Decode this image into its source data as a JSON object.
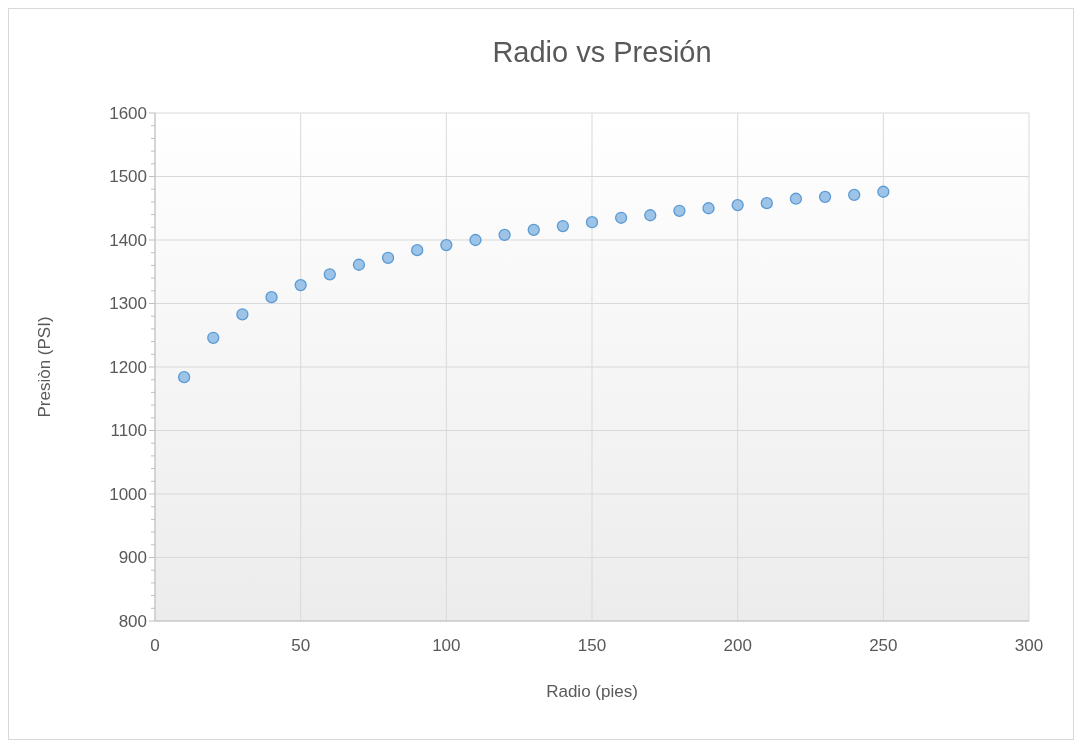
{
  "chart_data": {
    "type": "scatter",
    "title": "Radio vs Presión",
    "xlabel": "Radio (pies)",
    "ylabel": "Presiòn (PSI)",
    "x": [
      10,
      20,
      30,
      40,
      50,
      60,
      70,
      80,
      90,
      100,
      110,
      120,
      130,
      140,
      150,
      160,
      170,
      180,
      190,
      200,
      210,
      220,
      230,
      240,
      250
    ],
    "series": [
      {
        "color": "#9dc3e6",
        "values": [
          1184,
          1246,
          1283,
          1310,
          1329,
          1346,
          1361,
          1372,
          1384,
          1392,
          1400,
          1408,
          1416,
          1422,
          1428,
          1435,
          1439,
          1446,
          1450,
          1455,
          1458,
          1465,
          1468,
          1471,
          1476
        ]
      }
    ],
    "xlim": [
      0,
      300
    ],
    "xticks": [
      0,
      50,
      100,
      150,
      200,
      250,
      300
    ],
    "ylim": [
      800,
      1600
    ],
    "yticks": [
      800,
      {
        "value": 820,
        "label": null
      },
      {
        "value": 840,
        "label": null
      },
      {
        "value": 860,
        "label": null
      },
      {
        "value": 880,
        "label": null
      },
      900,
      {
        "value": 920,
        "label": null
      },
      {
        "value": 940,
        "label": null
      },
      {
        "value": 960,
        "label": null
      },
      {
        "value": 980,
        "label": null
      },
      1000,
      {
        "value": 1020,
        "label": null
      },
      {
        "value": 1040,
        "label": null
      },
      {
        "value": 1060,
        "label": null
      },
      {
        "value": 1080,
        "label": null
      },
      1100,
      {
        "value": 1120,
        "label": null
      },
      {
        "value": 1140,
        "label": null
      },
      {
        "value": 1160,
        "label": null
      },
      {
        "value": 1180,
        "label": null
      },
      1200,
      {
        "value": 1220,
        "label": null
      },
      {
        "value": 1240,
        "label": null
      },
      {
        "value": 1260,
        "label": null
      },
      {
        "value": 1280,
        "label": null
      },
      1300,
      {
        "value": 1320,
        "label": null
      },
      {
        "value": 1340,
        "label": null
      },
      {
        "value": 1360,
        "label": null
      },
      {
        "value": 1380,
        "label": null
      },
      1400,
      {
        "value": 1420,
        "label": null
      },
      {
        "value": 1440,
        "label": null
      },
      {
        "value": 1460,
        "label": null
      },
      {
        "value": 1480,
        "label": null
      },
      1500,
      {
        "value": 1520,
        "label": null
      },
      {
        "value": 1540,
        "label": null
      },
      {
        "value": 1560,
        "label": null
      },
      {
        "value": 1580,
        "label": null
      },
      1600
    ],
    "grid": true,
    "marker": "circle"
  }
}
